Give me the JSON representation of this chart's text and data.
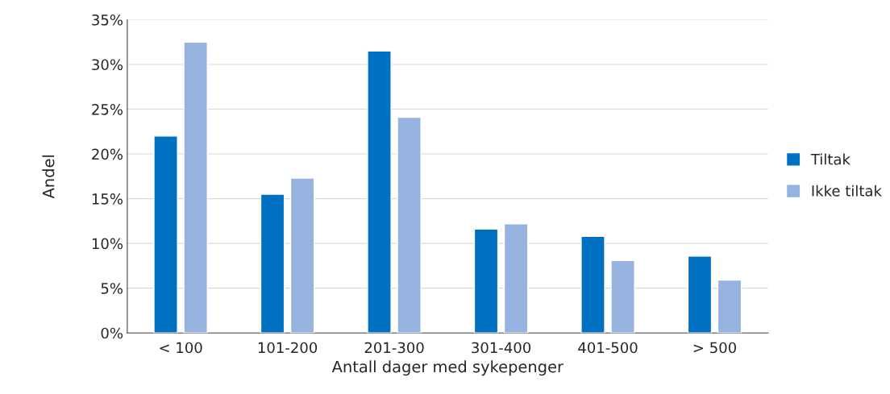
{
  "chart_data": {
    "type": "bar",
    "xlabel": "Antall dager med sykepenger",
    "ylabel": "Andel",
    "categories": [
      "< 100",
      "101-200",
      "201-300",
      "301-400",
      "401-500",
      "> 500"
    ],
    "series": [
      {
        "name": "Tiltak",
        "color": "#0070c0",
        "values": [
          22.0,
          15.5,
          31.5,
          11.6,
          10.8,
          8.6
        ]
      },
      {
        "name": "Ikke tiltak",
        "color": "#95b3de",
        "values": [
          32.5,
          17.3,
          24.1,
          12.2,
          8.1,
          5.9
        ]
      }
    ],
    "ylim": [
      0,
      35
    ],
    "yticks": [
      {
        "value": 0,
        "label": "0%"
      },
      {
        "value": 5,
        "label": "5%"
      },
      {
        "value": 10,
        "label": "10%"
      },
      {
        "value": 15,
        "label": "15%"
      },
      {
        "value": 20,
        "label": "20%"
      },
      {
        "value": 25,
        "label": "25%"
      },
      {
        "value": 30,
        "label": "30%"
      },
      {
        "value": 35,
        "label": "35%"
      }
    ],
    "grid": "y",
    "legend": "right"
  }
}
